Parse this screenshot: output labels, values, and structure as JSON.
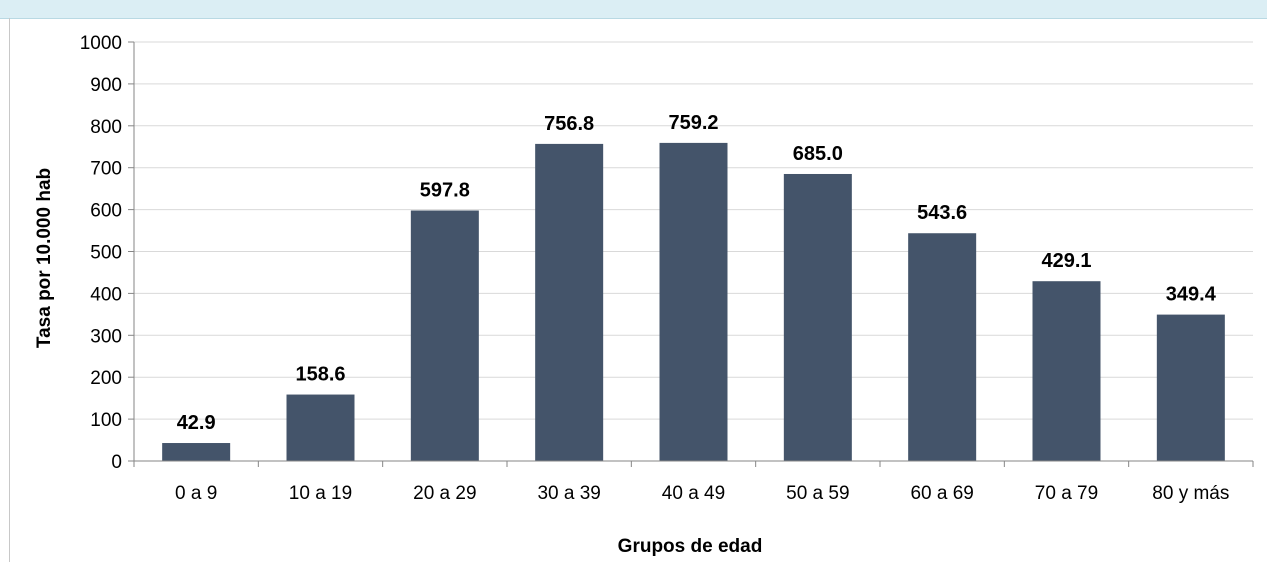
{
  "chart_data": {
    "type": "bar",
    "title": "",
    "xlabel": "Grupos de edad",
    "ylabel": "Tasa por 10.000 hab",
    "categories": [
      "0 a 9",
      "10 a 19",
      "20 a 29",
      "30 a 39",
      "40 a 49",
      "50 a 59",
      "60 a 69",
      "70 a 79",
      "80 y más"
    ],
    "values": [
      42.9,
      158.6,
      597.8,
      756.8,
      759.2,
      685.0,
      543.6,
      429.1,
      349.4
    ],
    "data_labels": [
      "42.9",
      "158.6",
      "597.8",
      "756.8",
      "759.2",
      "685.0",
      "543.6",
      "429.1",
      "349.4"
    ],
    "ylim": [
      0,
      1000
    ],
    "yticks": [
      0,
      100,
      200,
      300,
      400,
      500,
      600,
      700,
      800,
      900,
      1000
    ],
    "grid": true,
    "legend": "none",
    "bar_color": "#44546a",
    "grid_color": "#d9d9d9"
  }
}
